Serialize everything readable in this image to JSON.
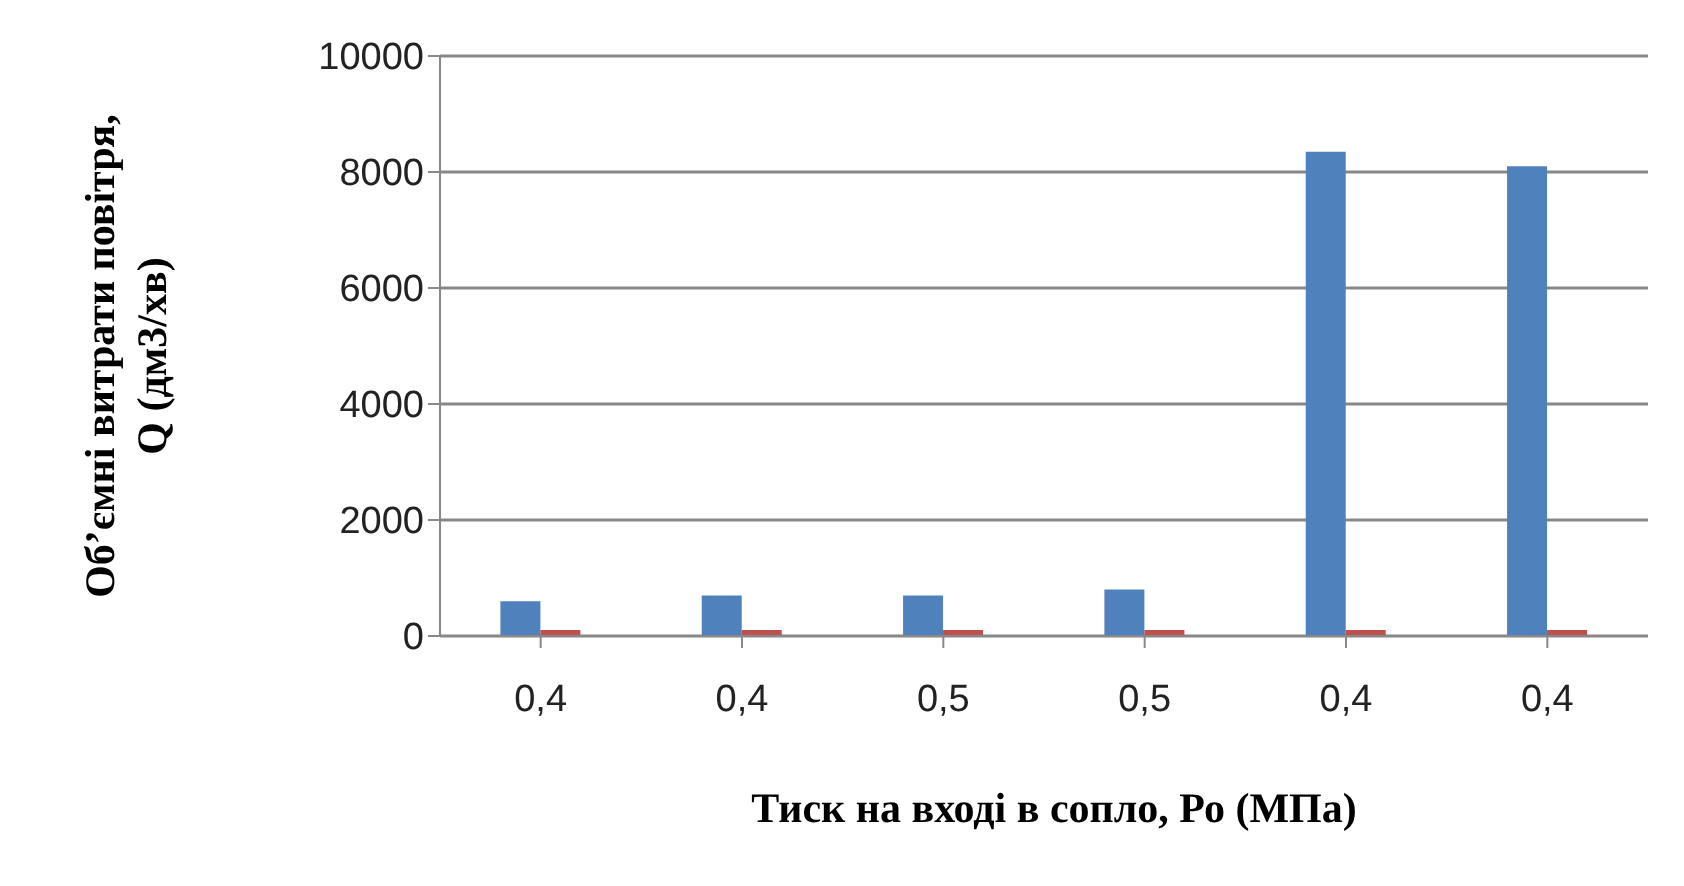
{
  "chart_data": {
    "type": "bar",
    "xlabel": "Тиск на вході в сопло, Ро (МПа)",
    "ylabel": "Об’ємні витрати повітря,\nQ (дм3/хв)",
    "categories": [
      "0,4",
      "0,4",
      "0,5",
      "0,5",
      "0,4",
      "0,4"
    ],
    "series": [
      {
        "color": "#4f81bd",
        "values": [
          600,
          700,
          700,
          800,
          8350,
          8100
        ]
      },
      {
        "color": "#c0504d",
        "values": [
          0,
          0,
          0,
          0,
          0,
          0
        ]
      }
    ],
    "ylim": [
      0,
      10000
    ],
    "yticks": [
      0,
      2000,
      4000,
      6000,
      8000,
      10000
    ],
    "grid": "y",
    "legend": false
  }
}
